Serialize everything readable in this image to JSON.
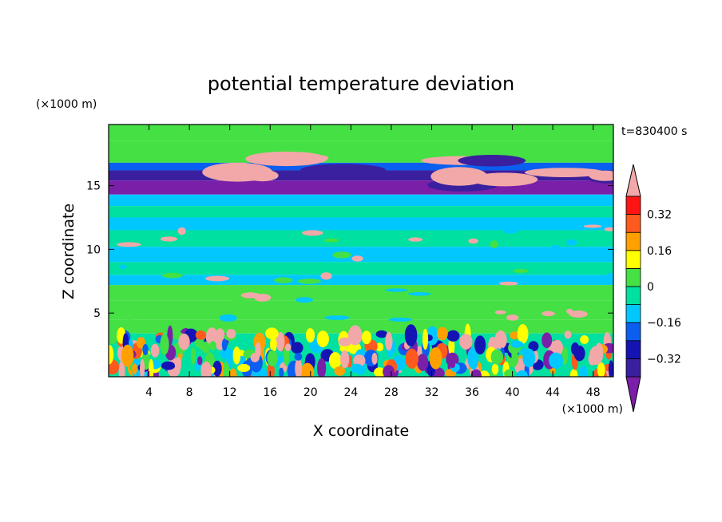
{
  "chart_data": {
    "type": "heatmap",
    "title": "potential temperature deviation",
    "xlabel": "X coordinate",
    "ylabel": "Z coordinate",
    "x_unit": "(×1000 m)",
    "z_unit": "(×1000 m)",
    "time_label": "t=830400 s",
    "xlim": [
      0,
      50
    ],
    "zlim": [
      0,
      19.8
    ],
    "x_ticks": [
      4,
      8,
      12,
      16,
      20,
      24,
      28,
      32,
      36,
      40,
      44,
      48
    ],
    "z_ticks": [
      5,
      10,
      15
    ],
    "colorbar": {
      "levels": [
        -0.4,
        -0.32,
        -0.24,
        -0.16,
        -0.08,
        0,
        0.08,
        0.16,
        0.24,
        0.32,
        0.4
      ],
      "tick_values": [
        0.32,
        0.16,
        0,
        -0.16,
        -0.32
      ],
      "tick_labels": [
        "0.32",
        "0.16",
        "0",
        "−0.16",
        "−0.32"
      ],
      "colors": [
        "#7a1fa8",
        "#3a1f9e",
        "#1414b4",
        "#0a5ff0",
        "#00c8ff",
        "#00e0a0",
        "#44e044",
        "#ffff00",
        "#ffa000",
        "#ff5a1e",
        "#ff1414",
        "#f2a8a8"
      ],
      "extend": "both"
    },
    "layers": [
      {
        "z": [
          18.5,
          19.8
        ],
        "value": 0.05
      },
      {
        "z": [
          16.8,
          18.5
        ],
        "value": 0.0
      },
      {
        "z": [
          16.2,
          16.8
        ],
        "value": -0.2
      },
      {
        "z": [
          15.4,
          16.2
        ],
        "value": -0.38
      },
      {
        "z": [
          14.3,
          15.4
        ],
        "value": -0.42
      },
      {
        "z": [
          13.4,
          14.3
        ],
        "value": -0.12
      },
      {
        "z": [
          12.5,
          13.4
        ],
        "value": -0.05
      },
      {
        "z": [
          11.5,
          12.5
        ],
        "value": -0.14
      },
      {
        "z": [
          10.2,
          11.5
        ],
        "value": -0.06
      },
      {
        "z": [
          9.0,
          10.2
        ],
        "value": -0.1
      },
      {
        "z": [
          8.0,
          9.0
        ],
        "value": -0.04
      },
      {
        "z": [
          7.2,
          8.0
        ],
        "value": -0.15
      },
      {
        "z": [
          6.0,
          7.2
        ],
        "value": 0.02
      },
      {
        "z": [
          4.5,
          6.0
        ],
        "value": 0.05
      },
      {
        "z": [
          3.4,
          4.5
        ],
        "value": 0.01
      },
      {
        "z": [
          0,
          3.4
        ],
        "value": -0.02
      }
    ]
  }
}
